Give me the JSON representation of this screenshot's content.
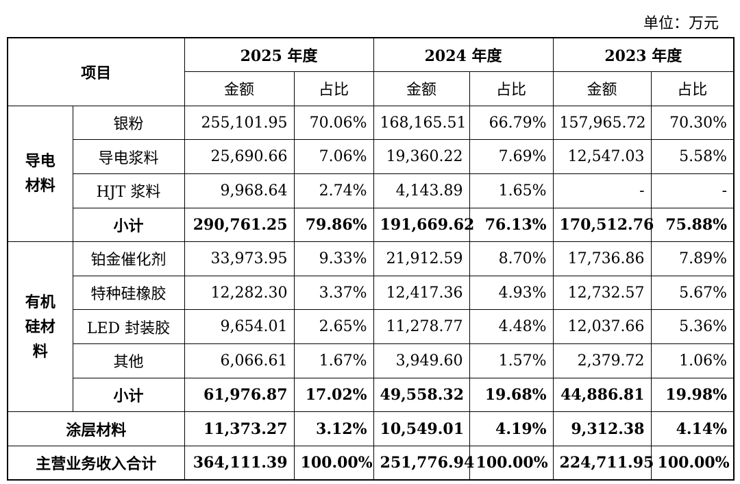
{
  "unit_label": "单位：万元",
  "header": {
    "item": "项目",
    "years": [
      "2025 年度",
      "2024 年度",
      "2023 年度"
    ],
    "amount": "金额",
    "ratio": "占比"
  },
  "groups": {
    "conductive": {
      "label_line1": "导电",
      "label_line2": "材料",
      "rows": [
        {
          "name": "银粉",
          "v": [
            "255,101.95",
            "70.06%",
            "168,165.51",
            "66.79%",
            "157,965.72",
            "70.30%"
          ]
        },
        {
          "name": "导电浆料",
          "v": [
            "25,690.66",
            "7.06%",
            "19,360.22",
            "7.69%",
            "12,547.03",
            "5.58%"
          ]
        },
        {
          "name": "HJT 浆料",
          "v": [
            "9,968.64",
            "2.74%",
            "4,143.89",
            "1.65%",
            "-",
            "-"
          ]
        }
      ],
      "subtotal": {
        "name": "小计",
        "v": [
          "290,761.25",
          "79.86%",
          "191,669.62",
          "76.13%",
          "170,512.76",
          "75.88%"
        ]
      }
    },
    "silicone": {
      "label_line1": "有机",
      "label_line2": "硅材",
      "label_line3": "料",
      "rows": [
        {
          "name": "铂金催化剂",
          "v": [
            "33,973.95",
            "9.33%",
            "21,912.59",
            "8.70%",
            "17,736.86",
            "7.89%"
          ]
        },
        {
          "name": "特种硅橡胶",
          "v": [
            "12,282.30",
            "3.37%",
            "12,417.36",
            "4.93%",
            "12,732.57",
            "5.67%"
          ]
        },
        {
          "name": "LED 封装胶",
          "v": [
            "9,654.01",
            "2.65%",
            "11,278.77",
            "4.48%",
            "12,037.66",
            "5.36%"
          ]
        },
        {
          "name": "其他",
          "v": [
            "6,066.61",
            "1.67%",
            "3,949.60",
            "1.57%",
            "2,379.72",
            "1.06%"
          ]
        }
      ],
      "subtotal": {
        "name": "小计",
        "v": [
          "61,976.87",
          "17.02%",
          "49,558.32",
          "19.68%",
          "44,886.81",
          "19.98%"
        ]
      }
    }
  },
  "coating": {
    "name": "涂层材料",
    "v": [
      "11,373.27",
      "3.12%",
      "10,549.01",
      "4.19%",
      "9,312.38",
      "4.14%"
    ]
  },
  "total": {
    "name": "主营业务收入合计",
    "v": [
      "364,111.39",
      "100.00%",
      "251,776.94",
      "100.00%",
      "224,711.95",
      "100.00%"
    ]
  }
}
